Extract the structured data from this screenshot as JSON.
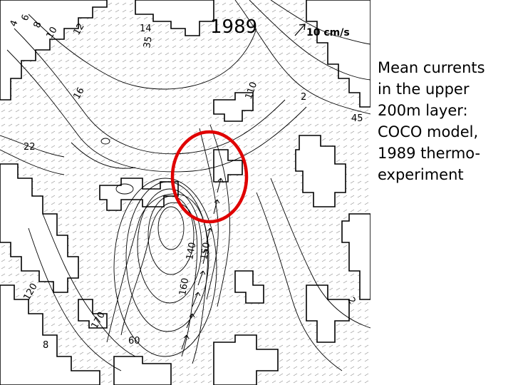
{
  "map": {
    "year": "1989",
    "scale_arrow_label": "10 cm/s",
    "contour_labels": [
      "14",
      "12",
      "10",
      "8",
      "6",
      "4",
      "35",
      "16",
      "22",
      "2",
      "45",
      "110",
      "140",
      "150",
      "160",
      "170",
      "60",
      "8",
      "120",
      "2"
    ],
    "highlight_color": "#e00000"
  },
  "caption": {
    "lines": [
      "Mean currents",
      "in the upper",
      "200m layer:",
      "COCO model,",
      "1989 thermo-",
      "experiment"
    ]
  }
}
